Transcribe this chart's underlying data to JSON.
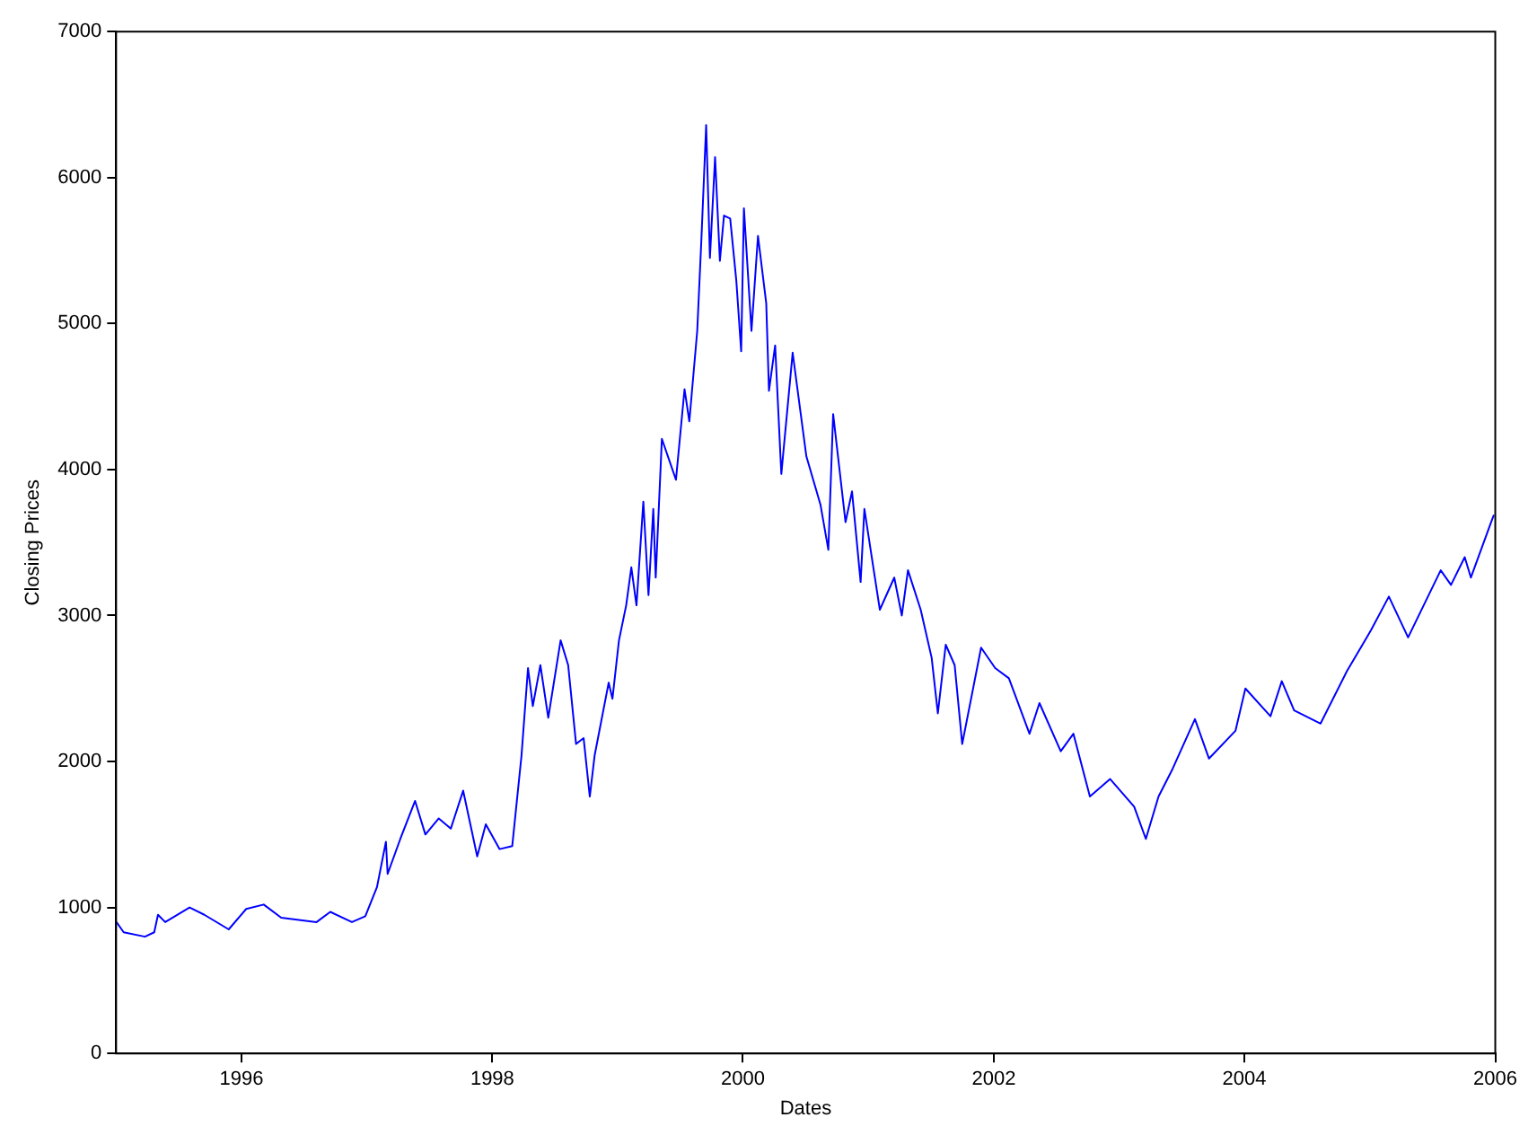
{
  "chart_data": {
    "type": "line",
    "xlabel": "Dates",
    "ylabel": "Closing Prices",
    "xlim": [
      "1995-01-01",
      "2006-01-01"
    ],
    "xticks": [
      "1996",
      "1998",
      "2000",
      "2002",
      "2004",
      "2006"
    ],
    "ylim": [
      0,
      7000
    ],
    "yticks": [
      0,
      1000,
      2000,
      3000,
      4000,
      5000,
      6000,
      7000
    ],
    "grid": false,
    "legend": false,
    "marker": "none",
    "line_style": "solid",
    "x": [
      "1995-01-02",
      "1995-01-23",
      "1995-03-26",
      "1995-04-22",
      "1995-05-03",
      "1995-05-24",
      "1995-08-03",
      "1995-09-15",
      "1995-11-25",
      "1996-01-15",
      "1996-03-06",
      "1996-04-26",
      "1996-08-07",
      "1996-09-16",
      "1996-11-18",
      "1996-12-27",
      "1997-01-30",
      "1997-02-25",
      "1997-03-02",
      "1997-04-08",
      "1997-05-21",
      "1997-06-20",
      "1997-07-29",
      "1997-09-02",
      "1997-10-08",
      "1997-11-18",
      "1997-12-13",
      "1998-01-22",
      "1998-02-28",
      "1998-03-27",
      "1998-04-15",
      "1998-04-29",
      "1998-05-21",
      "1998-06-13",
      "1998-07-19",
      "1998-08-10",
      "1998-09-02",
      "1998-09-24",
      "1998-10-12",
      "1998-10-26",
      "1998-12-06",
      "1998-12-17",
      "1999-01-05",
      "1999-01-26",
      "1999-02-10",
      "1999-02-25",
      "1999-03-17",
      "1999-04-01",
      "1999-04-15",
      "1999-04-22",
      "1999-05-10",
      "1999-06-20",
      "1999-07-15",
      "1999-07-29",
      "1999-08-21",
      "1999-09-02",
      "1999-09-16",
      "1999-09-27",
      "1999-10-12",
      "1999-10-26",
      "1999-11-07",
      "1999-11-25",
      "1999-12-13",
      "1999-12-27",
      "2000-01-04",
      "2000-01-26",
      "2000-02-14",
      "2000-03-09",
      "2000-03-17",
      "2000-04-04",
      "2000-04-22",
      "2000-05-25",
      "2000-07-04",
      "2000-08-14",
      "2000-09-06",
      "2000-09-20",
      "2000-10-26",
      "2000-11-14",
      "2000-12-09",
      "2000-12-20",
      "2001-01-15",
      "2001-02-03",
      "2001-03-17",
      "2001-04-08",
      "2001-04-26",
      "2001-06-02",
      "2001-07-04",
      "2001-07-22",
      "2001-08-14",
      "2001-09-09",
      "2001-10-01",
      "2001-11-25",
      "2002-01-05",
      "2002-02-14",
      "2002-04-15",
      "2002-05-14",
      "2002-07-15",
      "2002-08-21",
      "2002-10-08",
      "2002-12-06",
      "2003-02-14",
      "2003-03-20",
      "2003-04-26",
      "2003-06-06",
      "2003-08-10",
      "2003-09-20",
      "2003-12-06",
      "2004-01-04",
      "2004-03-17",
      "2004-04-19",
      "2004-05-25",
      "2004-08-10",
      "2004-10-26",
      "2005-01-04",
      "2005-02-25",
      "2005-04-22",
      "2005-07-26",
      "2005-08-25",
      "2005-10-04",
      "2005-10-22",
      "2005-12-20",
      "2005-12-28"
    ],
    "series": [
      {
        "color": "#0000ff",
        "values": [
          900,
          830,
          800,
          830,
          950,
          900,
          1000,
          950,
          850,
          990,
          1020,
          930,
          900,
          970,
          900,
          940,
          1140,
          1450,
          1230,
          1470,
          1730,
          1500,
          1610,
          1540,
          1800,
          1350,
          1570,
          1400,
          1420,
          2040,
          2640,
          2380,
          2660,
          2300,
          2830,
          2660,
          2120,
          2160,
          1760,
          2040,
          2540,
          2430,
          2830,
          3070,
          3330,
          3070,
          3780,
          3140,
          3730,
          3260,
          4210,
          3930,
          4550,
          4330,
          4950,
          5570,
          6360,
          5450,
          6140,
          5430,
          5740,
          5720,
          5290,
          4810,
          5790,
          4950,
          5600,
          5140,
          4540,
          4850,
          3970,
          4800,
          4090,
          3760,
          3450,
          4380,
          3640,
          3850,
          3230,
          3730,
          3330,
          3040,
          3260,
          3000,
          3310,
          3040,
          2710,
          2330,
          2800,
          2660,
          2120,
          2780,
          2640,
          2570,
          2190,
          2400,
          2070,
          2190,
          1760,
          1880,
          1690,
          1470,
          1760,
          1950,
          2290,
          2020,
          2210,
          2500,
          2310,
          2550,
          2350,
          2260,
          2620,
          2900,
          3130,
          2850,
          3310,
          3210,
          3400,
          3260,
          3640,
          3690
        ]
      }
    ]
  }
}
